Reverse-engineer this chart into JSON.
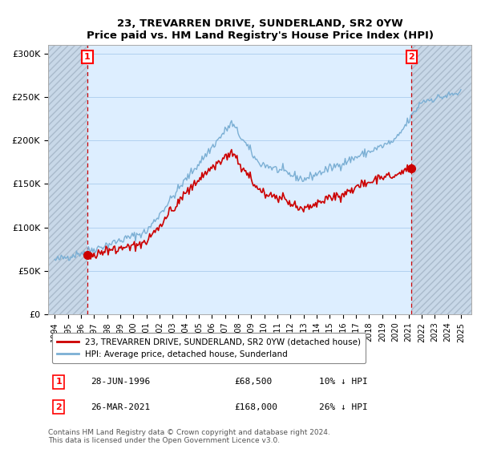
{
  "title": "23, TREVARREN DRIVE, SUNDERLAND, SR2 0YW",
  "subtitle": "Price paid vs. HM Land Registry's House Price Index (HPI)",
  "hpi_label": "HPI: Average price, detached house, Sunderland",
  "price_label": "23, TREVARREN DRIVE, SUNDERLAND, SR2 0YW (detached house)",
  "annotation1": {
    "label": "1",
    "date": "28-JUN-1996",
    "price": "£68,500",
    "pct": "10% ↓ HPI"
  },
  "annotation2": {
    "label": "2",
    "date": "26-MAR-2021",
    "price": "£168,000",
    "pct": "26% ↓ HPI"
  },
  "sale1_x": 1996.49,
  "sale1_y": 68500,
  "sale2_x": 2021.23,
  "sale2_y": 168000,
  "ylim": [
    0,
    310000
  ],
  "xlim": [
    1993.5,
    2025.8
  ],
  "yticks": [
    0,
    50000,
    100000,
    150000,
    200000,
    250000,
    300000
  ],
  "ytick_labels": [
    "£0",
    "£50K",
    "£100K",
    "£150K",
    "£200K",
    "£250K",
    "£300K"
  ],
  "xticks": [
    1994,
    1995,
    1996,
    1997,
    1998,
    1999,
    2000,
    2001,
    2002,
    2003,
    2004,
    2005,
    2006,
    2007,
    2008,
    2009,
    2010,
    2011,
    2012,
    2013,
    2014,
    2015,
    2016,
    2017,
    2018,
    2019,
    2020,
    2021,
    2022,
    2023,
    2024,
    2025
  ],
  "hpi_color": "#7bafd4",
  "hpi_fill_color": "#d0e4f5",
  "price_color": "#cc0000",
  "plot_bg_color": "#ddeeff",
  "bg_color": "#ffffff",
  "grid_color": "#aaccee",
  "hatch_color": "#c8d8e8",
  "footnote": "Contains HM Land Registry data © Crown copyright and database right 2024.\nThis data is licensed under the Open Government Licence v3.0."
}
